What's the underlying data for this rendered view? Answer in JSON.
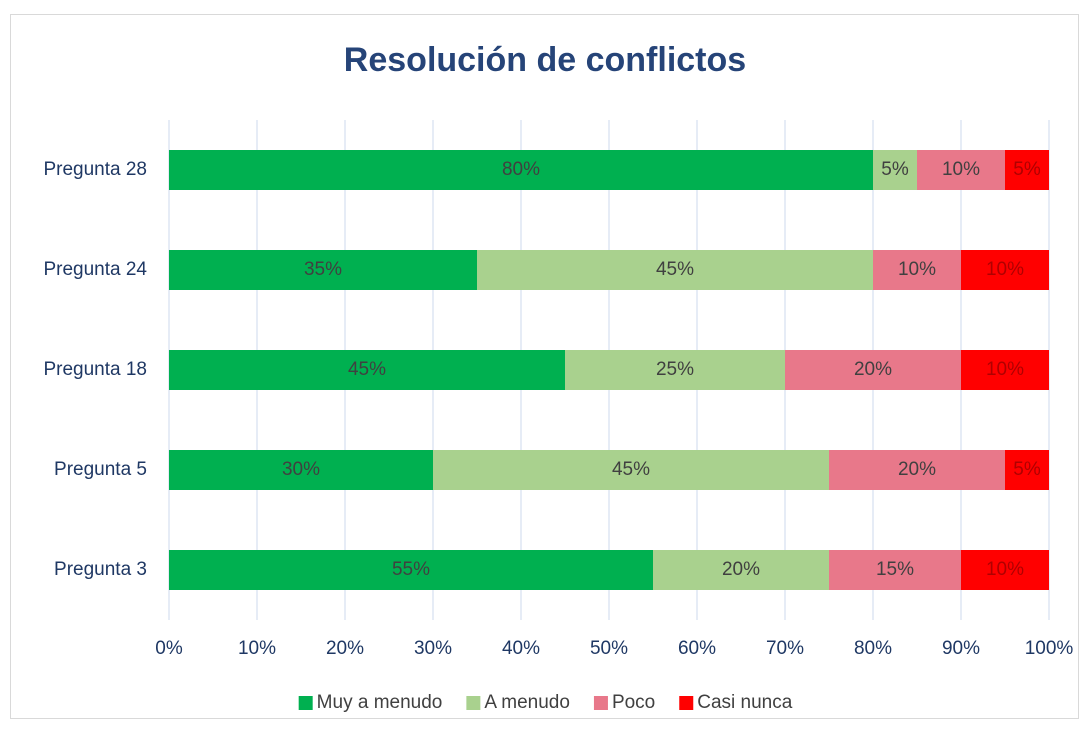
{
  "chart_data": {
    "type": "stacked_bar_horizontal",
    "title": "Resolución de conflictos",
    "categories": [
      "Pregunta 28",
      "Pregunta 24",
      "Pregunta 18",
      "Pregunta 5",
      "Pregunta 3"
    ],
    "series": [
      {
        "name": "Muy a menudo",
        "color": "#00b050",
        "label_color": "#404040",
        "values": [
          80,
          35,
          45,
          30,
          55
        ],
        "value_labels": [
          "80%",
          "35%",
          "45%",
          "30%",
          "55%"
        ]
      },
      {
        "name": "A menudo",
        "color": "#a9d18e",
        "label_color": "#404040",
        "values": [
          5,
          45,
          25,
          45,
          20
        ],
        "value_labels": [
          "5%",
          "45%",
          "25%",
          "45%",
          "20%"
        ]
      },
      {
        "name": "Poco",
        "color": "#e8788a",
        "label_color": "#404040",
        "values": [
          10,
          10,
          20,
          20,
          15
        ],
        "value_labels": [
          "10%",
          "10%",
          "20%",
          "20%",
          "15%"
        ]
      },
      {
        "name": "Casi nunca",
        "color": "#ff0000",
        "label_color": "#b00000",
        "values": [
          5,
          10,
          10,
          5,
          10
        ],
        "value_labels": [
          "5%",
          "10%",
          "10%",
          "5%",
          "10%"
        ]
      }
    ],
    "xlim": [
      0,
      100
    ],
    "xticks": [
      {
        "value": 0,
        "label": "0%"
      },
      {
        "value": 10,
        "label": "10%"
      },
      {
        "value": 20,
        "label": "20%"
      },
      {
        "value": 30,
        "label": "30%"
      },
      {
        "value": 40,
        "label": "40%"
      },
      {
        "value": 50,
        "label": "50%"
      },
      {
        "value": 60,
        "label": "60%"
      },
      {
        "value": 70,
        "label": "70%"
      },
      {
        "value": 80,
        "label": "80%"
      },
      {
        "value": 90,
        "label": "90%"
      },
      {
        "value": 100,
        "label": "100%"
      }
    ],
    "grid": true,
    "legend": "bottom"
  }
}
